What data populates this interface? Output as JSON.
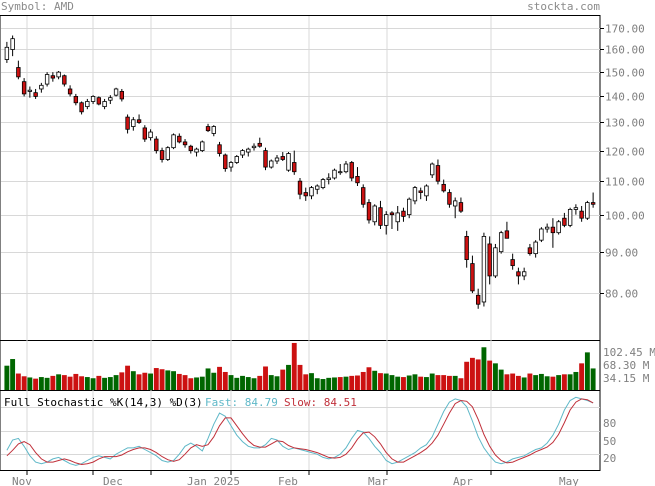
{
  "header": {
    "symbol_label": "Symbol: AMD",
    "site_label": "stockta.com"
  },
  "price_axis": {
    "ticks": [
      170,
      160,
      150,
      140,
      130,
      120,
      110,
      100,
      90,
      80
    ],
    "tick_labels": [
      "170.00",
      "160.00",
      "150.00",
      "140.00",
      "130.00",
      "120.00",
      "110.00",
      "100.00",
      "90.00",
      "80.00"
    ],
    "scale": "log"
  },
  "volume_axis": {
    "tick_labels": [
      "102.45 M",
      "68.30 M",
      "34.15 M"
    ]
  },
  "stoch": {
    "title": "Full Stochastic %K(14,3) %D(3)",
    "fast_label": "Fast: 84.79",
    "slow_label": "Slow: 84.51",
    "tick_labels": [
      "80",
      "50",
      "20"
    ],
    "fast_color": "#5fb8c8",
    "slow_color": "#c0303a"
  },
  "x_axis": {
    "labels": [
      "Nov",
      "Dec",
      "Jan 2025",
      "Feb",
      "Mar",
      "Apr",
      "May"
    ]
  },
  "colors": {
    "up": "#ffffff",
    "down": "#cc1111",
    "vol_up": "#006600",
    "vol_down": "#cc1111",
    "grid": "#d8d8d8"
  },
  "chart_data": [
    {
      "type": "candlestick",
      "title": "AMD daily price",
      "ylim": [
        70,
        176
      ],
      "candles": [
        [
          155.5,
          163.5,
          154.0,
          161.0
        ],
        [
          160.0,
          166.5,
          157.0,
          165.0
        ],
        [
          152.0,
          155.0,
          147.0,
          148.0
        ],
        [
          146.0,
          147.5,
          140.0,
          141.0
        ],
        [
          142.0,
          144.0,
          139.5,
          142.5
        ],
        [
          141.5,
          143.0,
          139.0,
          140.0
        ],
        [
          143.0,
          145.5,
          141.5,
          144.5
        ],
        [
          145.0,
          150.0,
          144.0,
          149.0
        ],
        [
          148.5,
          150.0,
          146.0,
          147.5
        ],
        [
          148.0,
          150.5,
          147.0,
          150.0
        ],
        [
          148.5,
          149.0,
          144.0,
          145.0
        ],
        [
          143.0,
          144.5,
          140.0,
          141.0
        ],
        [
          140.0,
          141.0,
          136.5,
          137.5
        ],
        [
          137.5,
          138.0,
          133.0,
          134.0
        ],
        [
          136.0,
          139.0,
          135.0,
          138.0
        ],
        [
          138.0,
          140.5,
          137.0,
          140.0
        ],
        [
          139.5,
          140.0,
          136.5,
          137.0
        ],
        [
          136.0,
          139.0,
          135.0,
          138.0
        ],
        [
          138.5,
          140.5,
          137.0,
          139.5
        ],
        [
          140.5,
          143.5,
          140.0,
          143.0
        ],
        [
          142.0,
          143.0,
          138.0,
          139.0
        ],
        [
          132.0,
          133.0,
          126.0,
          127.5
        ],
        [
          128.5,
          132.0,
          127.0,
          131.0
        ],
        [
          131.0,
          133.0,
          129.5,
          130.0
        ],
        [
          128.0,
          129.0,
          123.0,
          124.0
        ],
        [
          124.5,
          127.5,
          123.5,
          126.5
        ],
        [
          124.0,
          125.0,
          119.0,
          120.0
        ],
        [
          120.0,
          121.0,
          116.0,
          117.0
        ],
        [
          117.0,
          121.5,
          116.5,
          121.0
        ],
        [
          121.0,
          126.0,
          120.5,
          125.5
        ],
        [
          125.0,
          126.0,
          122.5,
          123.0
        ],
        [
          123.0,
          124.0,
          121.0,
          122.0
        ],
        [
          121.5,
          122.0,
          119.0,
          120.0
        ],
        [
          119.5,
          121.0,
          118.0,
          120.5
        ],
        [
          120.0,
          123.5,
          119.5,
          123.0
        ],
        [
          128.5,
          129.5,
          126.5,
          127.0
        ],
        [
          126.0,
          129.0,
          125.0,
          128.5
        ],
        [
          122.0,
          123.0,
          118.0,
          119.0
        ],
        [
          118.5,
          119.0,
          113.0,
          114.0
        ],
        [
          114.5,
          116.5,
          113.0,
          116.0
        ],
        [
          116.0,
          118.5,
          115.5,
          118.0
        ],
        [
          118.5,
          120.5,
          117.5,
          120.0
        ],
        [
          119.5,
          121.0,
          118.0,
          120.5
        ],
        [
          121.0,
          122.5,
          120.0,
          121.5
        ],
        [
          122.5,
          124.5,
          121.0,
          121.5
        ],
        [
          120.0,
          121.0,
          113.5,
          114.5
        ],
        [
          114.5,
          117.0,
          114.0,
          116.5
        ],
        [
          116.5,
          118.5,
          115.5,
          117.5
        ],
        [
          118.0,
          119.5,
          116.5,
          117.0
        ],
        [
          113.5,
          119.5,
          113.0,
          119.0
        ],
        [
          116.0,
          120.0,
          112.0,
          113.0
        ],
        [
          110.0,
          111.0,
          104.5,
          106.0
        ],
        [
          106.5,
          108.0,
          104.0,
          105.5
        ],
        [
          105.5,
          108.5,
          104.5,
          108.0
        ],
        [
          107.5,
          109.0,
          106.0,
          108.5
        ],
        [
          108.0,
          111.0,
          107.5,
          110.5
        ],
        [
          110.5,
          112.5,
          109.0,
          111.0
        ],
        [
          111.0,
          114.0,
          110.5,
          113.5
        ],
        [
          113.0,
          115.5,
          112.0,
          113.0
        ],
        [
          113.0,
          116.5,
          112.5,
          115.5
        ],
        [
          116.0,
          116.5,
          110.0,
          111.0
        ],
        [
          111.5,
          114.5,
          108.5,
          109.5
        ],
        [
          108.0,
          109.0,
          102.0,
          103.0
        ],
        [
          103.5,
          104.5,
          97.5,
          98.5
        ],
        [
          98.0,
          103.0,
          97.0,
          102.5
        ],
        [
          102.0,
          104.0,
          96.0,
          97.0
        ],
        [
          97.0,
          101.0,
          94.5,
          100.0
        ],
        [
          100.5,
          101.0,
          96.0,
          100.0
        ],
        [
          98.0,
          102.5,
          95.5,
          100.5
        ],
        [
          101.0,
          102.0,
          98.0,
          99.5
        ],
        [
          100.0,
          105.0,
          99.0,
          104.5
        ],
        [
          104.0,
          108.5,
          103.0,
          108.0
        ],
        [
          107.0,
          108.0,
          104.5,
          106.5
        ],
        [
          105.5,
          109.0,
          104.0,
          108.5
        ],
        [
          112.0,
          116.0,
          111.0,
          115.5
        ],
        [
          115.0,
          117.0,
          109.0,
          110.0
        ],
        [
          109.0,
          110.5,
          106.5,
          107.0
        ],
        [
          106.5,
          107.5,
          102.0,
          103.0
        ],
        [
          102.5,
          105.0,
          99.0,
          104.0
        ],
        [
          103.5,
          105.0,
          100.5,
          101.0
        ],
        [
          94.0,
          95.5,
          86.0,
          88.0
        ],
        [
          87.0,
          89.0,
          80.0,
          80.5
        ],
        [
          79.5,
          81.0,
          76.5,
          77.5
        ],
        [
          78.0,
          95.0,
          77.0,
          94.0
        ],
        [
          92.0,
          94.0,
          82.0,
          84.0
        ],
        [
          84.0,
          92.0,
          83.5,
          91.0
        ],
        [
          90.0,
          95.5,
          89.5,
          95.0
        ],
        [
          95.5,
          98.0,
          93.5,
          93.5
        ],
        [
          88.0,
          89.5,
          85.5,
          86.5
        ],
        [
          85.0,
          86.0,
          82.0,
          84.0
        ],
        [
          84.0,
          86.0,
          83.0,
          85.0
        ],
        [
          91.0,
          92.0,
          89.0,
          89.5
        ],
        [
          89.5,
          93.0,
          88.5,
          92.5
        ],
        [
          93.0,
          96.5,
          92.5,
          96.0
        ],
        [
          96.0,
          97.5,
          95.0,
          96.5
        ],
        [
          96.5,
          99.0,
          91.0,
          95.0
        ],
        [
          95.0,
          98.5,
          94.5,
          98.0
        ],
        [
          99.0,
          100.5,
          96.5,
          97.0
        ],
        [
          97.0,
          102.0,
          96.5,
          101.5
        ],
        [
          101.5,
          103.0,
          100.0,
          102.0
        ],
        [
          101.0,
          102.5,
          98.0,
          99.0
        ],
        [
          99.0,
          104.0,
          98.5,
          103.5
        ],
        [
          103.5,
          106.5,
          102.0,
          103.0
        ]
      ]
    },
    {
      "type": "bar",
      "title": "Volume",
      "ylim": [
        0,
        125
      ],
      "values": [
        [
          62,
          1
        ],
        [
          79,
          1
        ],
        [
          42,
          0
        ],
        [
          35,
          0
        ],
        [
          32,
          1
        ],
        [
          29,
          0
        ],
        [
          33,
          1
        ],
        [
          31,
          1
        ],
        [
          36,
          0
        ],
        [
          40,
          1
        ],
        [
          38,
          0
        ],
        [
          34,
          0
        ],
        [
          41,
          0
        ],
        [
          35,
          0
        ],
        [
          33,
          1
        ],
        [
          30,
          1
        ],
        [
          36,
          0
        ],
        [
          31,
          1
        ],
        [
          33,
          1
        ],
        [
          38,
          1
        ],
        [
          45,
          0
        ],
        [
          62,
          0
        ],
        [
          48,
          1
        ],
        [
          40,
          0
        ],
        [
          44,
          0
        ],
        [
          42,
          1
        ],
        [
          56,
          0
        ],
        [
          53,
          0
        ],
        [
          50,
          1
        ],
        [
          48,
          1
        ],
        [
          41,
          0
        ],
        [
          38,
          0
        ],
        [
          30,
          0
        ],
        [
          32,
          1
        ],
        [
          34,
          1
        ],
        [
          55,
          1
        ],
        [
          44,
          1
        ],
        [
          59,
          0
        ],
        [
          46,
          0
        ],
        [
          38,
          1
        ],
        [
          31,
          1
        ],
        [
          36,
          1
        ],
        [
          33,
          1
        ],
        [
          30,
          1
        ],
        [
          36,
          0
        ],
        [
          60,
          0
        ],
        [
          38,
          1
        ],
        [
          35,
          1
        ],
        [
          52,
          0
        ],
        [
          64,
          1
        ],
        [
          120,
          0
        ],
        [
          64,
          0
        ],
        [
          40,
          0
        ],
        [
          43,
          1
        ],
        [
          30,
          1
        ],
        [
          28,
          1
        ],
        [
          31,
          1
        ],
        [
          32,
          1
        ],
        [
          33,
          0
        ],
        [
          34,
          1
        ],
        [
          36,
          0
        ],
        [
          37,
          0
        ],
        [
          46,
          0
        ],
        [
          58,
          0
        ],
        [
          49,
          1
        ],
        [
          43,
          0
        ],
        [
          42,
          1
        ],
        [
          38,
          1
        ],
        [
          34,
          1
        ],
        [
          33,
          0
        ],
        [
          37,
          1
        ],
        [
          40,
          1
        ],
        [
          34,
          0
        ],
        [
          33,
          1
        ],
        [
          42,
          1
        ],
        [
          38,
          0
        ],
        [
          38,
          0
        ],
        [
          36,
          0
        ],
        [
          36,
          1
        ],
        [
          30,
          0
        ],
        [
          72,
          0
        ],
        [
          82,
          0
        ],
        [
          78,
          0
        ],
        [
          109,
          1
        ],
        [
          75,
          0
        ],
        [
          68,
          1
        ],
        [
          52,
          1
        ],
        [
          40,
          0
        ],
        [
          42,
          0
        ],
        [
          36,
          0
        ],
        [
          32,
          1
        ],
        [
          42,
          0
        ],
        [
          38,
          1
        ],
        [
          41,
          1
        ],
        [
          35,
          1
        ],
        [
          34,
          0
        ],
        [
          38,
          1
        ],
        [
          40,
          0
        ],
        [
          40,
          1
        ],
        [
          46,
          1
        ],
        [
          68,
          0
        ],
        [
          96,
          1
        ],
        [
          55,
          1
        ]
      ]
    },
    {
      "type": "line",
      "title": "Full Stochastic %K(14,3) %D(3)",
      "ylim": [
        0,
        100
      ],
      "series": [
        {
          "name": "Fast",
          "values": [
            25,
            38,
            40,
            30,
            18,
            10,
            8,
            10,
            14,
            16,
            12,
            8,
            6,
            8,
            12,
            16,
            18,
            16,
            14,
            20,
            24,
            28,
            28,
            30,
            26,
            22,
            18,
            12,
            10,
            12,
            20,
            30,
            34,
            30,
            24,
            40,
            58,
            72,
            68,
            56,
            44,
            36,
            30,
            28,
            28,
            32,
            40,
            38,
            30,
            26,
            28,
            26,
            24,
            22,
            20,
            16,
            14,
            16,
            20,
            28,
            40,
            50,
            48,
            40,
            30,
            22,
            12,
            8,
            10,
            14,
            18,
            22,
            28,
            32,
            42,
            58,
            74,
            86,
            90,
            88,
            80,
            62,
            42,
            28,
            18,
            10,
            8,
            10,
            14,
            16,
            18,
            22,
            26,
            28,
            34,
            44,
            58,
            76,
            88,
            92,
            90,
            88,
            85
          ]
        },
        {
          "name": "Slow",
          "values": [
            18,
            25,
            33,
            36,
            32,
            22,
            14,
            10,
            10,
            12,
            14,
            12,
            9,
            7,
            8,
            10,
            14,
            17,
            17,
            17,
            19,
            23,
            26,
            28,
            28,
            26,
            22,
            17,
            13,
            11,
            13,
            20,
            28,
            32,
            30,
            32,
            42,
            56,
            66,
            66,
            56,
            46,
            37,
            31,
            29,
            29,
            33,
            37,
            36,
            31,
            28,
            27,
            26,
            24,
            22,
            19,
            16,
            15,
            16,
            20,
            28,
            39,
            47,
            48,
            42,
            33,
            22,
            14,
            10,
            10,
            14,
            18,
            22,
            27,
            34,
            44,
            58,
            72,
            84,
            88,
            87,
            80,
            64,
            45,
            30,
            19,
            12,
            9,
            10,
            13,
            16,
            19,
            23,
            26,
            29,
            35,
            45,
            60,
            76,
            86,
            90,
            89,
            85
          ]
        }
      ]
    }
  ]
}
